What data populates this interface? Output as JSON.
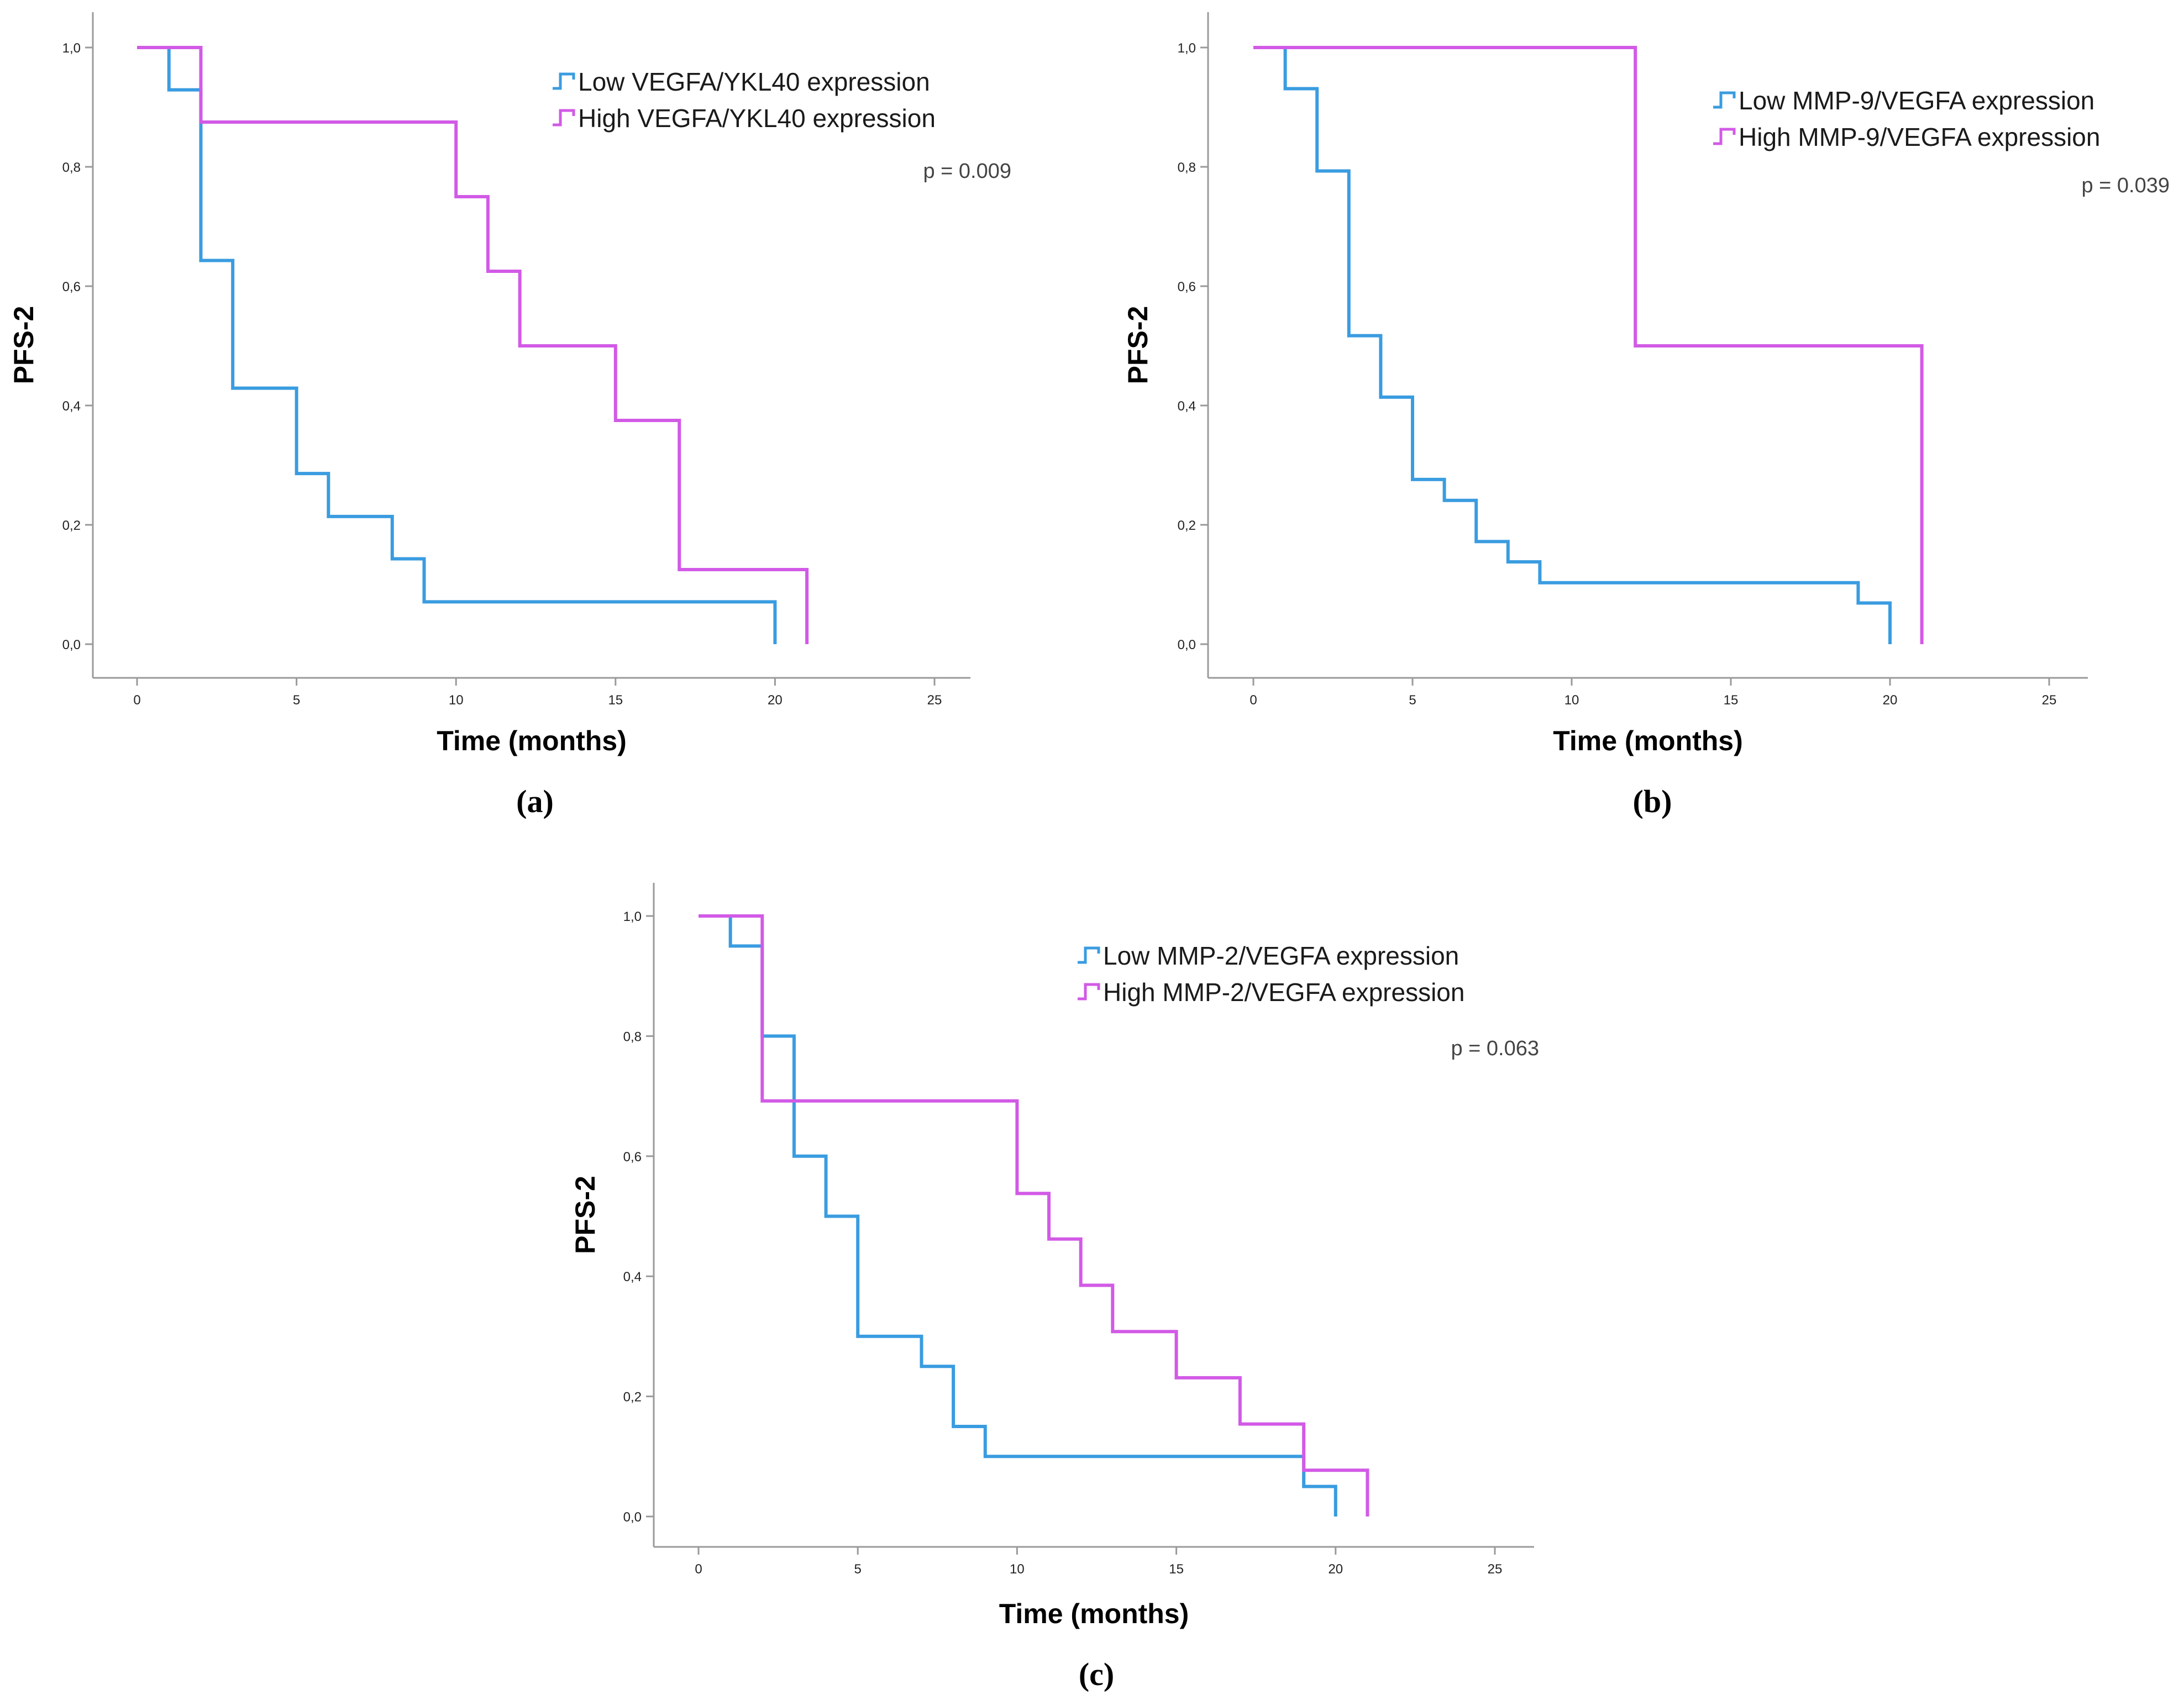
{
  "figure": {
    "panel_labels": [
      "(a)",
      "(b)",
      "(c)"
    ]
  },
  "colors": {
    "low": "#3a9ce0",
    "high": "#d25ae6"
  },
  "chart_data": [
    {
      "id": "a",
      "type": "line",
      "subtype": "kaplan-meier step",
      "panel_label": "(a)",
      "xlabel": "Time (months)",
      "ylabel": "PFS-2",
      "xlim": [
        0,
        25
      ],
      "ylim": [
        0,
        1
      ],
      "xticks": [
        0,
        5,
        10,
        15,
        20,
        25
      ],
      "xtick_labels": [
        "0",
        "5",
        "10",
        "15",
        "20",
        "25"
      ],
      "yticks": [
        0,
        0.2,
        0.4,
        0.6,
        0.8,
        1.0
      ],
      "ytick_labels": [
        "0,0",
        "0,2",
        "0,4",
        "0,6",
        "0,8",
        "1,0"
      ],
      "grid": false,
      "legend_position": "top-right",
      "p_value": "p = 0.009",
      "series": [
        {
          "name": "Low VEGFA/YKL40 expression",
          "color_key": "low",
          "times": [
            1,
            2,
            3,
            5,
            6,
            8,
            9,
            20
          ],
          "survival": [
            0.929,
            0.643,
            0.429,
            0.286,
            0.214,
            0.143,
            0.071,
            0.0
          ]
        },
        {
          "name": "High VEGFA/YKL40 expression",
          "color_key": "high",
          "times": [
            2,
            10,
            11,
            12,
            15,
            17,
            21
          ],
          "survival": [
            0.875,
            0.75,
            0.625,
            0.5,
            0.375,
            0.125,
            0.0
          ]
        }
      ]
    },
    {
      "id": "b",
      "type": "line",
      "subtype": "kaplan-meier step",
      "panel_label": "(b)",
      "xlabel": "Time (months)",
      "ylabel": "PFS-2",
      "xlim": [
        0,
        25
      ],
      "ylim": [
        0,
        1
      ],
      "xticks": [
        0,
        5,
        10,
        15,
        20,
        25
      ],
      "xtick_labels": [
        "0",
        "5",
        "10",
        "15",
        "20",
        "25"
      ],
      "yticks": [
        0,
        0.2,
        0.4,
        0.6,
        0.8,
        1.0
      ],
      "ytick_labels": [
        "0,0",
        "0,2",
        "0,4",
        "0,6",
        "0,8",
        "1,0"
      ],
      "grid": false,
      "legend_position": "top-right",
      "p_value": "p = 0.039",
      "series": [
        {
          "name": "Low MMP-9/VEGFA expression",
          "color_key": "low",
          "times": [
            1,
            2,
            3,
            4,
            5,
            6,
            7,
            8,
            9,
            19,
            20
          ],
          "survival": [
            0.931,
            0.793,
            0.517,
            0.414,
            0.276,
            0.241,
            0.172,
            0.138,
            0.103,
            0.069,
            0.0
          ]
        },
        {
          "name": "High MMP-9/VEGFA expression",
          "color_key": "high",
          "times": [
            12,
            21
          ],
          "survival": [
            0.5,
            0.0
          ]
        }
      ]
    },
    {
      "id": "c",
      "type": "line",
      "subtype": "kaplan-meier step",
      "panel_label": "(c)",
      "xlabel": "Time (months)",
      "ylabel": "PFS-2",
      "xlim": [
        0,
        25
      ],
      "ylim": [
        0,
        1
      ],
      "xticks": [
        0,
        5,
        10,
        15,
        20,
        25
      ],
      "xtick_labels": [
        "0",
        "5",
        "10",
        "15",
        "20",
        "25"
      ],
      "yticks": [
        0,
        0.2,
        0.4,
        0.6,
        0.8,
        1.0
      ],
      "ytick_labels": [
        "0,0",
        "0,2",
        "0,4",
        "0,6",
        "0,8",
        "1,0"
      ],
      "grid": false,
      "legend_position": "top-right",
      "p_value": "p = 0.063",
      "series": [
        {
          "name": "Low MMP-2/VEGFA expression",
          "color_key": "low",
          "times": [
            1,
            2,
            3,
            4,
            5,
            7,
            8,
            9,
            19,
            20
          ],
          "survival": [
            0.95,
            0.8,
            0.6,
            0.5,
            0.3,
            0.25,
            0.15,
            0.1,
            0.05,
            0.0
          ]
        },
        {
          "name": "High MMP-2/VEGFA expression",
          "color_key": "high",
          "times": [
            2,
            10,
            11,
            12,
            13,
            15,
            17,
            19,
            21
          ],
          "survival": [
            0.692,
            0.538,
            0.462,
            0.385,
            0.308,
            0.231,
            0.154,
            0.077,
            0.0
          ]
        }
      ]
    }
  ]
}
